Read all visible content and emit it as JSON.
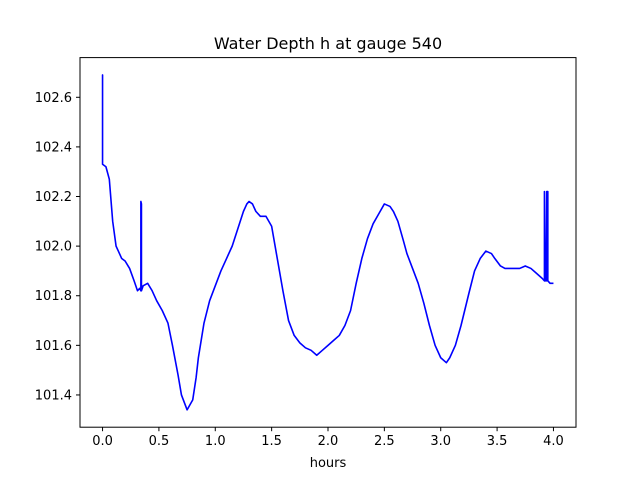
{
  "chart_data": {
    "type": "line",
    "title": "Water Depth h at gauge 540",
    "xlabel": "hours",
    "ylabel": "",
    "xlim": [
      -0.2,
      4.2
    ],
    "ylim": [
      101.27,
      102.76
    ],
    "xticks": [
      0.0,
      0.5,
      1.0,
      1.5,
      2.0,
      2.5,
      3.0,
      3.5,
      4.0
    ],
    "xtick_labels": [
      "0.0",
      "0.5",
      "1.0",
      "1.5",
      "2.0",
      "2.5",
      "3.0",
      "3.5",
      "4.0"
    ],
    "yticks": [
      101.4,
      101.6,
      101.8,
      102.0,
      102.2,
      102.4,
      102.6
    ],
    "ytick_labels": [
      "101.4",
      "101.6",
      "101.8",
      "102.0",
      "102.2",
      "102.4",
      "102.6"
    ],
    "grid": false,
    "legend": "none",
    "series": [
      {
        "color": "#0000ff",
        "x": [
          0.0,
          0.0,
          0.0,
          0.03,
          0.06,
          0.09,
          0.12,
          0.14,
          0.17,
          0.2,
          0.24,
          0.28,
          0.31,
          0.33,
          0.34,
          0.34,
          0.345,
          0.345,
          0.36,
          0.4,
          0.44,
          0.48,
          0.53,
          0.58,
          0.62,
          0.67,
          0.7,
          0.75,
          0.8,
          0.83,
          0.85,
          0.9,
          0.95,
          1.0,
          1.05,
          1.1,
          1.15,
          1.2,
          1.25,
          1.28,
          1.3,
          1.33,
          1.36,
          1.4,
          1.45,
          1.5,
          1.55,
          1.6,
          1.65,
          1.7,
          1.75,
          1.8,
          1.85,
          1.9,
          1.95,
          2.0,
          2.05,
          2.1,
          2.15,
          2.2,
          2.25,
          2.3,
          2.35,
          2.4,
          2.45,
          2.5,
          2.55,
          2.58,
          2.62,
          2.67,
          2.7,
          2.75,
          2.8,
          2.85,
          2.9,
          2.95,
          3.0,
          3.05,
          3.08,
          3.13,
          3.18,
          3.25,
          3.3,
          3.35,
          3.4,
          3.45,
          3.48,
          3.53,
          3.57,
          3.6,
          3.65,
          3.7,
          3.75,
          3.8,
          3.85,
          3.9,
          3.92,
          3.92,
          3.93,
          3.94,
          3.94,
          3.95,
          3.95,
          3.97,
          4.0
        ],
        "values": [
          102.33,
          102.69,
          102.33,
          102.32,
          102.27,
          102.1,
          102.0,
          101.98,
          101.95,
          101.94,
          101.91,
          101.86,
          101.82,
          101.83,
          101.82,
          102.18,
          102.17,
          101.82,
          101.84,
          101.85,
          101.82,
          101.78,
          101.74,
          101.69,
          101.6,
          101.48,
          101.4,
          101.34,
          101.38,
          101.47,
          101.55,
          101.69,
          101.78,
          101.84,
          101.9,
          101.95,
          102.0,
          102.07,
          102.14,
          102.17,
          102.18,
          102.17,
          102.14,
          102.12,
          102.12,
          102.08,
          101.95,
          101.82,
          101.7,
          101.64,
          101.61,
          101.59,
          101.58,
          101.56,
          101.58,
          101.6,
          101.62,
          101.64,
          101.68,
          101.74,
          101.85,
          101.95,
          102.03,
          102.09,
          102.13,
          102.17,
          102.16,
          102.14,
          102.1,
          102.02,
          101.97,
          101.91,
          101.85,
          101.77,
          101.68,
          101.6,
          101.55,
          101.53,
          101.55,
          101.6,
          101.68,
          101.81,
          101.9,
          101.95,
          101.98,
          101.97,
          101.95,
          101.92,
          101.91,
          101.91,
          101.91,
          101.91,
          101.92,
          101.91,
          101.89,
          101.87,
          101.86,
          102.22,
          101.86,
          101.86,
          102.22,
          102.22,
          101.86,
          101.85,
          101.85
        ]
      }
    ]
  }
}
